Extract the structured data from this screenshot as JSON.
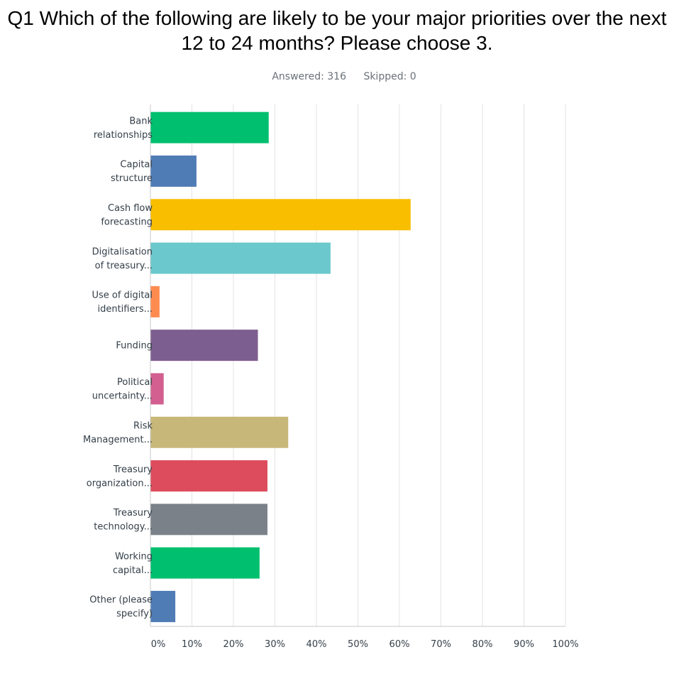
{
  "title": "Q1 Which of the following are likely to be your major priorities over the next 12 to 24 months? Please choose 3.",
  "summary": {
    "answered_label": "Answered: 316",
    "skipped_label": "Skipped: 0"
  },
  "colors": {
    "grid": "#e3e3e3",
    "axis": "#c8c8c8",
    "text": "#333e48"
  },
  "chart_data": {
    "type": "bar",
    "orientation": "horizontal",
    "categories": [
      [
        "Bank",
        "relationships"
      ],
      [
        "Capital",
        "structure"
      ],
      [
        "Cash flow",
        "forecasting"
      ],
      [
        "Digitalisation",
        "of treasury..."
      ],
      [
        "Use of digital",
        "identifiers..."
      ],
      [
        "Funding"
      ],
      [
        "Political",
        "uncertainty..."
      ],
      [
        "Risk",
        "Management..."
      ],
      [
        "Treasury",
        "organization..."
      ],
      [
        "Treasury",
        "technology..."
      ],
      [
        "Working",
        "capital..."
      ],
      [
        "Other (please",
        "specify)"
      ]
    ],
    "values": [
      28.5,
      11.1,
      62.7,
      43.4,
      2.2,
      25.9,
      3.2,
      33.2,
      28.2,
      28.2,
      26.3,
      6.0
    ],
    "bar_colors": [
      "#00bf6f",
      "#507cb6",
      "#f9be00",
      "#6bc8cd",
      "#ff8b4f",
      "#7d5e90",
      "#d25f90",
      "#c7b879",
      "#dd4c5c",
      "#7a8189",
      "#00bf6f",
      "#507cb6"
    ],
    "xlim": [
      0,
      100
    ],
    "x_ticks": [
      "0%",
      "10%",
      "20%",
      "30%",
      "40%",
      "50%",
      "60%",
      "70%",
      "80%",
      "90%",
      "100%"
    ],
    "grid": true,
    "xlabel": "",
    "ylabel": ""
  }
}
